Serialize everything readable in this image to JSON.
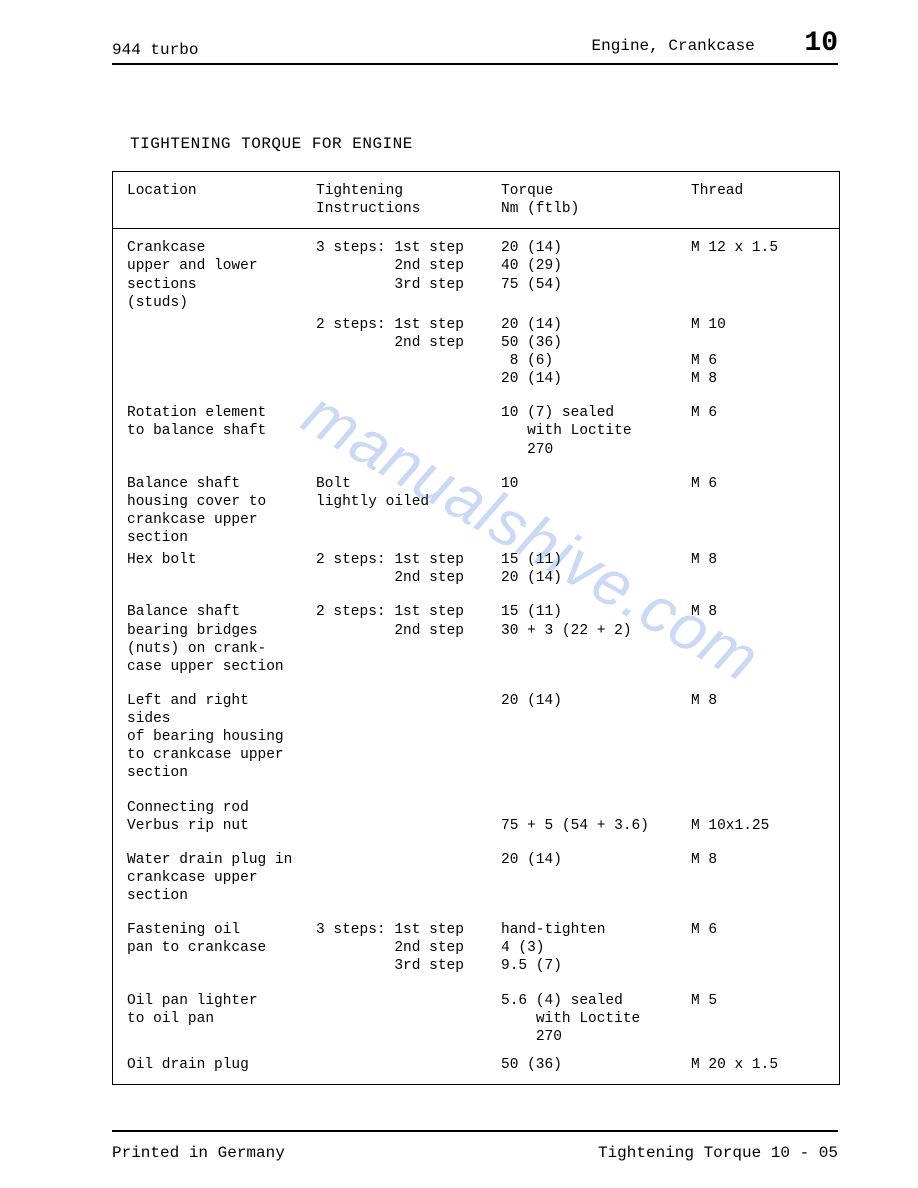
{
  "header": {
    "left": "944 turbo",
    "right": "Engine, Crankcase",
    "page_num": "10"
  },
  "title": "TIGHTENING TORQUE FOR ENGINE",
  "columns": {
    "c1": "Location",
    "c2": "Tightening\nInstructions",
    "c3": "Torque\nNm (ftlb)",
    "c4": "Thread"
  },
  "rows": [
    {
      "c1": "Crankcase\nupper and lower\nsections\n(studs)",
      "c2": "3 steps: 1st step\n         2nd step\n         3rd step",
      "c3": "20 (14)\n40 (29)\n75 (54)",
      "c4": "M 12 x 1.5",
      "spacing": "tight"
    },
    {
      "c1": "",
      "c2": "2 steps: 1st step\n         2nd step",
      "c3": "20 (14)\n50 (36)\n 8 (6)\n20 (14)",
      "c4": "M 10\n\nM 6\nM 8"
    },
    {
      "c1": "Rotation element\nto balance shaft",
      "c2": "",
      "c3": "10 (7) sealed\n   with Loctite\n   270",
      "c4": "M 6"
    },
    {
      "c1": "Balance shaft\nhousing cover to\ncrankcase upper\nsection",
      "c2": "Bolt\nlightly oiled",
      "c3": "10",
      "c4": "M 6",
      "spacing": "tight"
    },
    {
      "c1": "Hex bolt",
      "c2": "2 steps: 1st step\n         2nd step",
      "c3": "15 (11)\n20 (14)",
      "c4": "M 8"
    },
    {
      "c1": "Balance shaft\nbearing bridges\n(nuts) on crank-\ncase upper section",
      "c2": "2 steps: 1st step\n         2nd step",
      "c3": "15 (11)\n30 + 3 (22 + 2)",
      "c4": "M 8"
    },
    {
      "c1": "Left and right sides\nof bearing housing\nto crankcase upper\nsection",
      "c2": "",
      "c3": "20 (14)",
      "c4": "M 8"
    },
    {
      "c1": "Connecting rod\nVerbus rip nut",
      "c2": "",
      "c3": "\n75 + 5 (54 + 3.6)",
      "c4": "\nM 10x1.25"
    },
    {
      "c1": "Water drain plug in\ncrankcase upper\nsection",
      "c2": "",
      "c3": "20 (14)",
      "c4": "M 8"
    },
    {
      "c1": "Fastening oil\npan to crankcase",
      "c2": "3 steps: 1st step\n         2nd step\n         3rd step",
      "c3": "hand-tighten\n4 (3)\n9.5 (7)",
      "c4": "M 6"
    },
    {
      "c1": "Oil pan lighter\nto oil pan",
      "c2": "",
      "c3": "5.6 (4) sealed\n    with Loctite\n    270",
      "c4": "M 5",
      "spacing": "tightish"
    },
    {
      "c1": "Oil drain plug",
      "c2": "",
      "c3": "50 (36)",
      "c4": "M 20 x 1.5"
    }
  ],
  "footer": {
    "left": "Printed in Germany",
    "right": "Tightening Torque   10 - 05"
  },
  "watermark": "manualshive.com"
}
